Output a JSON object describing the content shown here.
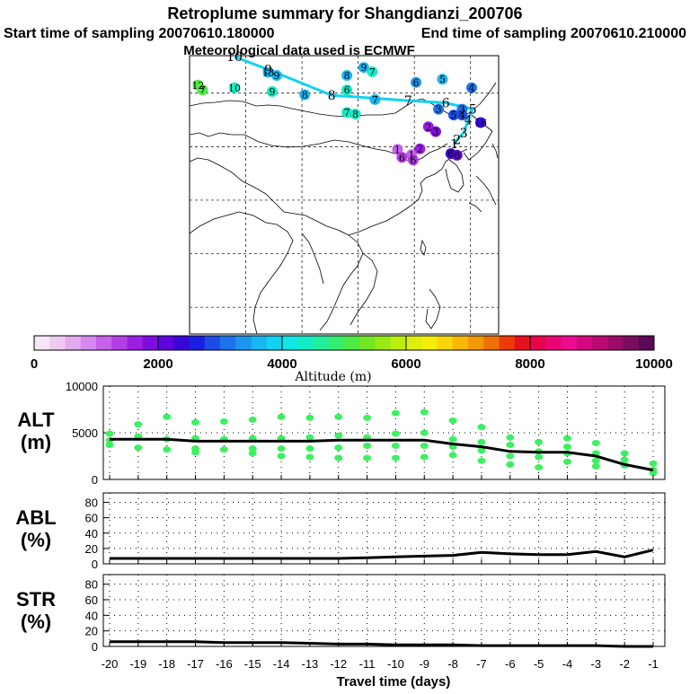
{
  "header": {
    "title": "Retroplume summary for Shangdianzi_200706",
    "start_time": "Start time of sampling 20070610.180000",
    "end_time": "End time of sampling 20070610.210000",
    "met_data": "Meteorological data used is ECMWF"
  },
  "colorbar": {
    "label": "Altitude (m)",
    "tick_labels": [
      "0",
      "2000",
      "4000",
      "6000",
      "8000",
      "10000"
    ],
    "colors": [
      "#f6e6f6",
      "#eecaf0",
      "#e2aaf0",
      "#d688ee",
      "#c561ea",
      "#b23ee6",
      "#9a1fe2",
      "#7e0ee0",
      "#5d05dc",
      "#3a06d8",
      "#1d1fe0",
      "#1b4de6",
      "#1d73ec",
      "#1d96f0",
      "#18b6f2",
      "#12d2f2",
      "#10e6e6",
      "#14ecc4",
      "#22ee9e",
      "#34ee70",
      "#4eea44",
      "#74e624",
      "#9ae814",
      "#bcee0c",
      "#dcf00a",
      "#f4ee0a",
      "#f8d608",
      "#f8b808",
      "#f49808",
      "#f07008",
      "#ec3a08",
      "#e61020",
      "#e8044c",
      "#ec0474",
      "#ec0a92",
      "#d4087e",
      "#b80a72",
      "#9a0c6a",
      "#7a0c60",
      "#5a0a56"
    ]
  },
  "map": {
    "trajectory": [
      {
        "label": "1",
        "lon": 117.1,
        "lat": 40.6
      },
      {
        "label": "2",
        "lon": 117.6,
        "lat": 41.3
      },
      {
        "label": "3",
        "lon": 118.8,
        "lat": 42.6
      },
      {
        "label": "4",
        "lon": 119.6,
        "lat": 45.0
      },
      {
        "label": "5",
        "lon": 120.4,
        "lat": 47.0
      },
      {
        "label": "6",
        "lon": 115.6,
        "lat": 48.2
      },
      {
        "label": "7",
        "lon": 108.9,
        "lat": 48.6
      },
      {
        "label": "8",
        "lon": 95.3,
        "lat": 49.6
      },
      {
        "label": "9",
        "lon": 84.0,
        "lat": 54.4
      },
      {
        "label": "10",
        "lon": 78.0,
        "lat": 56.8
      }
    ],
    "labels": [
      {
        "t": "13",
        "lon": 84.0,
        "lat": 53.9,
        "c": "#18b6f2"
      },
      {
        "t": "9",
        "lon": 85.5,
        "lat": 53.3,
        "c": "#18b6f2"
      },
      {
        "t": "8",
        "lon": 98.0,
        "lat": 53.3,
        "c": "#18b6f2"
      },
      {
        "t": "9",
        "lon": 101.0,
        "lat": 54.8,
        "c": "#18b6f2"
      },
      {
        "t": "7",
        "lon": 102.5,
        "lat": 54.0,
        "c": "#14ecc4"
      },
      {
        "t": "12",
        "lon": 71.5,
        "lat": 51.5,
        "c": "#4eea44"
      },
      {
        "t": "7",
        "lon": 72.3,
        "lat": 50.6,
        "c": "#4eea44"
      },
      {
        "t": "10",
        "lon": 78.0,
        "lat": 51.0,
        "c": "#14ecc4"
      },
      {
        "t": "9",
        "lon": 84.7,
        "lat": 50.3,
        "c": "#14ecc4"
      },
      {
        "t": "8",
        "lon": 90.5,
        "lat": 49.7,
        "c": "#18b6f2"
      },
      {
        "t": "6",
        "lon": 98.0,
        "lat": 50.6,
        "c": "#14ecc4"
      },
      {
        "t": "7",
        "lon": 103.0,
        "lat": 48.8,
        "c": "#18b6f2"
      },
      {
        "t": "7",
        "lon": 98.0,
        "lat": 46.4,
        "c": "#14ecc4"
      },
      {
        "t": "8",
        "lon": 99.5,
        "lat": 46.1,
        "c": "#14ecc4"
      },
      {
        "t": "6",
        "lon": 110.3,
        "lat": 52.0,
        "c": "#1d96f0"
      },
      {
        "t": "5",
        "lon": 115.0,
        "lat": 52.6,
        "c": "#18b6f2"
      },
      {
        "t": "4",
        "lon": 120.2,
        "lat": 51.0,
        "c": "#1d73ec"
      },
      {
        "t": "3",
        "lon": 114.3,
        "lat": 47.0,
        "c": "#1d73ec"
      },
      {
        "t": "3",
        "lon": 118.5,
        "lat": 47.0,
        "c": "#1d73ec"
      },
      {
        "t": "5",
        "lon": 117.0,
        "lat": 45.9,
        "c": "#1b4de6"
      },
      {
        "t": "4",
        "lon": 118.5,
        "lat": 45.9,
        "c": "#1b4de6"
      },
      {
        "t": "16",
        "lon": 121.8,
        "lat": 44.5,
        "c": "#3a06d8"
      },
      {
        "t": "2",
        "lon": 112.5,
        "lat": 43.7,
        "c": "#9a1fe2"
      },
      {
        "t": "3",
        "lon": 113.8,
        "lat": 42.8,
        "c": "#7e0ee0"
      },
      {
        "t": "1",
        "lon": 107.0,
        "lat": 39.5,
        "c": "#c561ea"
      },
      {
        "t": "1",
        "lon": 109.5,
        "lat": 38.5,
        "c": "#c561ea"
      },
      {
        "t": "2",
        "lon": 111.0,
        "lat": 39.6,
        "c": "#9a1fe2"
      },
      {
        "t": "6",
        "lon": 107.8,
        "lat": 38.0,
        "c": "#b23ee6"
      },
      {
        "t": "6",
        "lon": 109.8,
        "lat": 37.5,
        "c": "#b23ee6"
      },
      {
        "t": "6",
        "lon": 116.5,
        "lat": 38.7,
        "c": "#3a06d8"
      },
      {
        "t": "6",
        "lon": 117.6,
        "lat": 38.4,
        "c": "#5d05dc"
      }
    ]
  },
  "chart_data": [
    {
      "type": "scatter",
      "title": "ALT",
      "ylabel": "ALT (m)",
      "label_lines": [
        "ALT",
        "(m)"
      ],
      "xlabel": "Travel time (days)",
      "ylim": [
        0,
        10000
      ],
      "yticks": [
        0,
        5000,
        10000
      ],
      "point_color": "#3cf060",
      "series": [
        {
          "name": "median altitude",
          "x": [
            -20,
            -19,
            -18,
            -17,
            -16,
            -15,
            -14,
            -13,
            -12,
            -11,
            -10,
            -9,
            -8,
            -7,
            -6,
            -5,
            -4,
            -3,
            -2,
            -1
          ],
          "values": [
            4300,
            4300,
            4300,
            4100,
            4100,
            4100,
            4100,
            4100,
            4200,
            4200,
            4200,
            4200,
            3800,
            3500,
            3000,
            2900,
            2900,
            2500,
            1600,
            1000
          ]
        },
        {
          "name": "plume spread",
          "points": [
            {
              "x": -20,
              "y": 4900
            },
            {
              "x": -20,
              "y": 4200
            },
            {
              "x": -20,
              "y": 3700
            },
            {
              "x": -19,
              "y": 5900
            },
            {
              "x": -19,
              "y": 4600
            },
            {
              "x": -19,
              "y": 3400
            },
            {
              "x": -18,
              "y": 6700
            },
            {
              "x": -18,
              "y": 4300
            },
            {
              "x": -18,
              "y": 3200
            },
            {
              "x": -17,
              "y": 6100
            },
            {
              "x": -17,
              "y": 4400
            },
            {
              "x": -17,
              "y": 3300
            },
            {
              "x": -17,
              "y": 2900
            },
            {
              "x": -16,
              "y": 6200
            },
            {
              "x": -16,
              "y": 4300
            },
            {
              "x": -16,
              "y": 3200
            },
            {
              "x": -15,
              "y": 6400
            },
            {
              "x": -15,
              "y": 4400
            },
            {
              "x": -15,
              "y": 3300
            },
            {
              "x": -15,
              "y": 2800
            },
            {
              "x": -14,
              "y": 6700
            },
            {
              "x": -14,
              "y": 4400
            },
            {
              "x": -14,
              "y": 3300
            },
            {
              "x": -14,
              "y": 2500
            },
            {
              "x": -13,
              "y": 6600
            },
            {
              "x": -13,
              "y": 4500
            },
            {
              "x": -13,
              "y": 3300
            },
            {
              "x": -13,
              "y": 2400
            },
            {
              "x": -12,
              "y": 6700
            },
            {
              "x": -12,
              "y": 4700
            },
            {
              "x": -12,
              "y": 3400
            },
            {
              "x": -12,
              "y": 2300
            },
            {
              "x": -11,
              "y": 6600
            },
            {
              "x": -11,
              "y": 4500
            },
            {
              "x": -11,
              "y": 3600
            },
            {
              "x": -11,
              "y": 2300
            },
            {
              "x": -10,
              "y": 7100
            },
            {
              "x": -10,
              "y": 4900
            },
            {
              "x": -10,
              "y": 3600
            },
            {
              "x": -10,
              "y": 2300
            },
            {
              "x": -9,
              "y": 7200
            },
            {
              "x": -9,
              "y": 5000
            },
            {
              "x": -9,
              "y": 3600
            },
            {
              "x": -9,
              "y": 2400
            },
            {
              "x": -8,
              "y": 6300
            },
            {
              "x": -8,
              "y": 4300
            },
            {
              "x": -8,
              "y": 3500
            },
            {
              "x": -8,
              "y": 2600
            },
            {
              "x": -7,
              "y": 5600
            },
            {
              "x": -7,
              "y": 4000
            },
            {
              "x": -7,
              "y": 3100
            },
            {
              "x": -7,
              "y": 2000
            },
            {
              "x": -6,
              "y": 4500
            },
            {
              "x": -6,
              "y": 3700
            },
            {
              "x": -6,
              "y": 2500
            },
            {
              "x": -6,
              "y": 1600
            },
            {
              "x": -5,
              "y": 4000
            },
            {
              "x": -5,
              "y": 3000
            },
            {
              "x": -5,
              "y": 2400
            },
            {
              "x": -5,
              "y": 1300
            },
            {
              "x": -4,
              "y": 4400
            },
            {
              "x": -4,
              "y": 3500
            },
            {
              "x": -4,
              "y": 2800
            },
            {
              "x": -4,
              "y": 1900
            },
            {
              "x": -3,
              "y": 3900
            },
            {
              "x": -3,
              "y": 2800
            },
            {
              "x": -3,
              "y": 2000
            },
            {
              "x": -3,
              "y": 1400
            },
            {
              "x": -2,
              "y": 2800
            },
            {
              "x": -2,
              "y": 2100
            },
            {
              "x": -2,
              "y": 1500
            },
            {
              "x": -1,
              "y": 1700
            },
            {
              "x": -1,
              "y": 1000
            },
            {
              "x": -1,
              "y": 700
            }
          ]
        }
      ]
    },
    {
      "type": "line",
      "title": "ABL",
      "ylabel": "ABL (%)",
      "label_lines": [
        "ABL",
        "(%)"
      ],
      "xlabel": "Travel time (days)",
      "ylim": [
        0,
        90
      ],
      "yticks": [
        0,
        20,
        40,
        60,
        80
      ],
      "x": [
        -20,
        -19,
        -18,
        -17,
        -16,
        -15,
        -14,
        -13,
        -12,
        -11,
        -10,
        -9,
        -8,
        -7,
        -6,
        -5,
        -4,
        -3,
        -2,
        -1
      ],
      "values": [
        7,
        7,
        7,
        7,
        7,
        7,
        7,
        7,
        7,
        8,
        9,
        10,
        11,
        15,
        13,
        12,
        12,
        16,
        9,
        18
      ]
    },
    {
      "type": "line",
      "title": "STR",
      "ylabel": "STR (%)",
      "label_lines": [
        "STR",
        "(%)"
      ],
      "xlabel": "Travel time (days)",
      "ylim": [
        0,
        90
      ],
      "yticks": [
        0,
        20,
        40,
        60,
        80
      ],
      "x": [
        -20,
        -19,
        -18,
        -17,
        -16,
        -15,
        -14,
        -13,
        -12,
        -11,
        -10,
        -9,
        -8,
        -7,
        -6,
        -5,
        -4,
        -3,
        -2,
        -1
      ],
      "values": [
        6,
        6,
        6,
        6,
        5,
        5,
        5,
        4,
        3,
        3,
        2,
        2,
        2,
        1,
        1,
        1,
        1,
        1,
        0,
        0
      ],
      "xticks": [
        "-20",
        "-19",
        "-18",
        "-17",
        "-16",
        "-15",
        "-14",
        "-13",
        "-12",
        "-11",
        "-10",
        "-9",
        "-8",
        "-7",
        "-6",
        "-5",
        "-4",
        "-3",
        "-2",
        "-1"
      ]
    }
  ]
}
